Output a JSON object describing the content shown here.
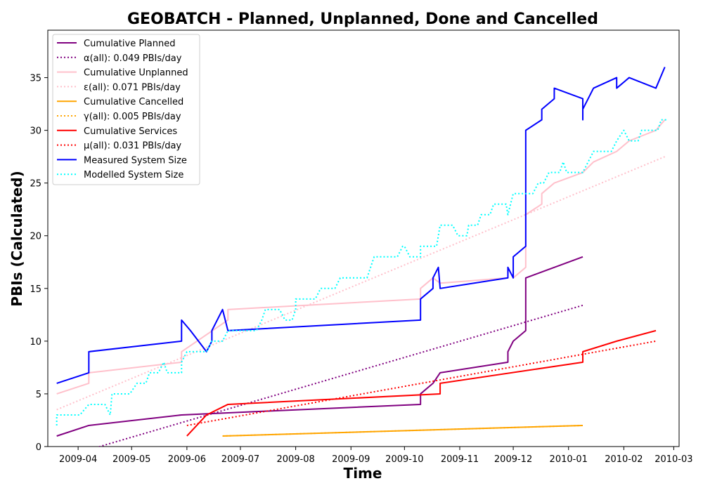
{
  "chart_data": {
    "type": "line",
    "title": "GEOBATCH - Planned, Unplanned, Done  and Cancelled",
    "xlabel": "Time",
    "ylabel": "PBIs (Calculated)",
    "xlim": [
      "2009-03-15",
      "2010-03-04"
    ],
    "ylim": [
      0,
      39.5
    ],
    "x_ticks": [
      {
        "date": "2009-04-01",
        "label": "2009-04"
      },
      {
        "date": "2009-05-01",
        "label": "2009-05"
      },
      {
        "date": "2009-06-01",
        "label": "2009-06"
      },
      {
        "date": "2009-07-01",
        "label": "2009-07"
      },
      {
        "date": "2009-08-01",
        "label": "2009-08"
      },
      {
        "date": "2009-09-01",
        "label": "2009-09"
      },
      {
        "date": "2009-10-01",
        "label": "2009-10"
      },
      {
        "date": "2009-11-01",
        "label": "2009-11"
      },
      {
        "date": "2009-12-01",
        "label": "2009-12"
      },
      {
        "date": "2010-01-01",
        "label": "2010-01"
      },
      {
        "date": "2010-02-01",
        "label": "2010-02"
      },
      {
        "date": "2010-03-01",
        "label": "2010-03"
      }
    ],
    "y_ticks": [
      0,
      5,
      10,
      15,
      20,
      25,
      30,
      35
    ],
    "grid": false,
    "legend_position": "top-left",
    "series": [
      {
        "name": "Cumulative Planned",
        "color": "#800080",
        "style": "solid",
        "points": [
          [
            "2009-03-20",
            1
          ],
          [
            "2009-04-07",
            2
          ],
          [
            "2009-05-29",
            3
          ],
          [
            "2009-06-24",
            3.2
          ],
          [
            "2009-10-10",
            4
          ],
          [
            "2009-10-10",
            5
          ],
          [
            "2009-10-17",
            6
          ],
          [
            "2009-10-21",
            7
          ],
          [
            "2009-11-28",
            8
          ],
          [
            "2009-11-28",
            9
          ],
          [
            "2009-12-01",
            10
          ],
          [
            "2009-12-08",
            11
          ],
          [
            "2009-12-08",
            16
          ],
          [
            "2009-12-24",
            17
          ],
          [
            "2010-01-09",
            18
          ]
        ]
      },
      {
        "name": "α(all): 0.049 PBIs/day",
        "color": "#800080",
        "style": "dotted",
        "points": [
          [
            "2009-04-07",
            -0.3
          ],
          [
            "2010-01-09",
            13.4
          ]
        ]
      },
      {
        "name": "Cumulative Unplanned",
        "color": "#ffc0cb",
        "style": "solid",
        "points": [
          [
            "2009-03-20",
            5
          ],
          [
            "2009-04-07",
            6
          ],
          [
            "2009-04-07",
            7
          ],
          [
            "2009-05-29",
            8
          ],
          [
            "2009-05-29",
            9
          ],
          [
            "2009-06-24",
            12
          ],
          [
            "2009-06-24",
            13
          ],
          [
            "2009-10-10",
            14
          ],
          [
            "2009-10-10",
            15
          ],
          [
            "2009-10-17",
            16
          ],
          [
            "2009-10-21",
            15.5
          ],
          [
            "2009-11-28",
            16
          ],
          [
            "2009-11-28",
            17
          ],
          [
            "2009-12-01",
            16
          ],
          [
            "2009-12-08",
            17
          ],
          [
            "2009-12-08",
            22
          ],
          [
            "2009-12-17",
            23
          ],
          [
            "2009-12-17",
            24
          ],
          [
            "2009-12-24",
            25
          ],
          [
            "2010-01-09",
            26
          ],
          [
            "2010-01-15",
            27
          ],
          [
            "2010-01-28",
            28
          ],
          [
            "2010-02-04",
            29
          ],
          [
            "2010-02-19",
            30
          ],
          [
            "2010-02-24",
            31
          ]
        ]
      },
      {
        "name": "ε(all): 0.071 PBIs/day",
        "color": "#ffc0cb",
        "style": "dotted",
        "points": [
          [
            "2009-03-20",
            3.5
          ],
          [
            "2010-02-24",
            27.5
          ]
        ]
      },
      {
        "name": "Cumulative Cancelled",
        "color": "#ffa500",
        "style": "solid",
        "points": [
          [
            "2009-06-21",
            1
          ],
          [
            "2010-01-09",
            2
          ]
        ]
      },
      {
        "name": "γ(all): 0.005 PBIs/day",
        "color": "#ffa500",
        "style": "dotted",
        "points": [
          [
            "2009-06-21",
            1
          ],
          [
            "2010-01-09",
            2
          ]
        ]
      },
      {
        "name": "Cumulative Services",
        "color": "#ff0000",
        "style": "solid",
        "points": [
          [
            "2009-06-01",
            1
          ],
          [
            "2009-06-12",
            3
          ],
          [
            "2009-06-24",
            4
          ],
          [
            "2009-10-21",
            5
          ],
          [
            "2009-10-21",
            6
          ],
          [
            "2010-01-09",
            8
          ],
          [
            "2010-01-09",
            9
          ],
          [
            "2010-01-28",
            10
          ],
          [
            "2010-02-19",
            11
          ]
        ]
      },
      {
        "name": "μ(all): 0.031 PBIs/day",
        "color": "#ff0000",
        "style": "dotted",
        "points": [
          [
            "2009-06-01",
            2
          ],
          [
            "2010-02-19",
            10
          ]
        ]
      },
      {
        "name": "Measured System Size",
        "color": "#0000ff",
        "style": "solid",
        "points": [
          [
            "2009-03-20",
            6
          ],
          [
            "2009-04-07",
            7
          ],
          [
            "2009-04-07",
            9
          ],
          [
            "2009-05-29",
            10
          ],
          [
            "2009-05-29",
            12
          ],
          [
            "2009-06-03",
            11
          ],
          [
            "2009-06-12",
            9
          ],
          [
            "2009-06-15",
            10
          ],
          [
            "2009-06-15",
            11
          ],
          [
            "2009-06-21",
            13
          ],
          [
            "2009-06-24",
            11
          ],
          [
            "2009-10-10",
            12
          ],
          [
            "2009-10-10",
            14
          ],
          [
            "2009-10-17",
            15
          ],
          [
            "2009-10-17",
            16
          ],
          [
            "2009-10-20",
            17
          ],
          [
            "2009-10-21",
            15
          ],
          [
            "2009-11-28",
            16
          ],
          [
            "2009-11-28",
            17
          ],
          [
            "2009-12-01",
            16
          ],
          [
            "2009-12-01",
            18
          ],
          [
            "2009-12-08",
            19
          ],
          [
            "2009-12-08",
            30
          ],
          [
            "2009-12-17",
            31
          ],
          [
            "2009-12-17",
            32
          ],
          [
            "2009-12-24",
            33
          ],
          [
            "2009-12-24",
            34
          ],
          [
            "2010-01-09",
            33
          ],
          [
            "2010-01-09",
            31
          ],
          [
            "2010-01-09",
            32
          ],
          [
            "2010-01-15",
            34
          ],
          [
            "2010-01-28",
            35
          ],
          [
            "2010-01-28",
            34
          ],
          [
            "2010-02-04",
            35
          ],
          [
            "2010-02-19",
            34
          ],
          [
            "2010-02-24",
            36
          ]
        ]
      },
      {
        "name": "Modelled System Size",
        "color": "#00ffff",
        "style": "dotted",
        "points": [
          [
            "2009-03-20",
            2
          ],
          [
            "2009-03-20",
            3
          ],
          [
            "2009-04-02",
            3
          ],
          [
            "2009-04-07",
            4
          ],
          [
            "2009-04-16",
            4
          ],
          [
            "2009-04-19",
            3
          ],
          [
            "2009-04-20",
            5
          ],
          [
            "2009-04-30",
            5
          ],
          [
            "2009-05-04",
            6
          ],
          [
            "2009-05-09",
            6
          ],
          [
            "2009-05-11",
            7
          ],
          [
            "2009-05-16",
            7
          ],
          [
            "2009-05-19",
            8
          ],
          [
            "2009-05-21",
            7
          ],
          [
            "2009-05-29",
            7
          ],
          [
            "2009-05-29",
            8
          ],
          [
            "2009-06-01",
            9
          ],
          [
            "2009-06-12",
            9
          ],
          [
            "2009-06-15",
            10
          ],
          [
            "2009-06-21",
            10
          ],
          [
            "2009-06-24",
            11
          ],
          [
            "2009-07-10",
            11
          ],
          [
            "2009-07-13",
            12
          ],
          [
            "2009-07-15",
            13
          ],
          [
            "2009-07-23",
            13
          ],
          [
            "2009-07-26",
            12
          ],
          [
            "2009-07-30",
            12
          ],
          [
            "2009-08-01",
            13
          ],
          [
            "2009-08-01",
            14
          ],
          [
            "2009-08-12",
            14
          ],
          [
            "2009-08-15",
            15
          ],
          [
            "2009-08-23",
            15
          ],
          [
            "2009-08-26",
            16
          ],
          [
            "2009-09-10",
            16
          ],
          [
            "2009-09-14",
            18
          ],
          [
            "2009-09-27",
            18
          ],
          [
            "2009-09-30",
            19
          ],
          [
            "2009-10-01",
            19
          ],
          [
            "2009-10-04",
            18
          ],
          [
            "2009-10-10",
            18
          ],
          [
            "2009-10-10",
            19
          ],
          [
            "2009-10-14",
            19
          ],
          [
            "2009-10-19",
            19
          ],
          [
            "2009-10-21",
            21
          ],
          [
            "2009-10-28",
            21
          ],
          [
            "2009-10-31",
            20
          ],
          [
            "2009-11-05",
            20
          ],
          [
            "2009-11-06",
            21
          ],
          [
            "2009-11-11",
            21
          ],
          [
            "2009-11-13",
            22
          ],
          [
            "2009-11-18",
            22
          ],
          [
            "2009-11-20",
            23
          ],
          [
            "2009-11-27",
            23
          ],
          [
            "2009-11-28",
            22
          ],
          [
            "2009-12-01",
            24
          ],
          [
            "2009-12-12",
            24
          ],
          [
            "2009-12-15",
            25
          ],
          [
            "2009-12-18",
            25
          ],
          [
            "2009-12-21",
            26
          ],
          [
            "2009-12-27",
            26
          ],
          [
            "2009-12-29",
            27
          ],
          [
            "2009-12-31",
            26
          ],
          [
            "2010-01-09",
            26
          ],
          [
            "2010-01-12",
            27
          ],
          [
            "2010-01-15",
            28
          ],
          [
            "2010-01-25",
            28
          ],
          [
            "2010-01-28",
            29
          ],
          [
            "2010-02-01",
            30
          ],
          [
            "2010-02-04",
            29
          ],
          [
            "2010-02-09",
            29
          ],
          [
            "2010-02-11",
            30
          ],
          [
            "2010-02-20",
            30
          ],
          [
            "2010-02-22",
            31
          ],
          [
            "2010-02-25",
            31
          ]
        ]
      }
    ]
  }
}
